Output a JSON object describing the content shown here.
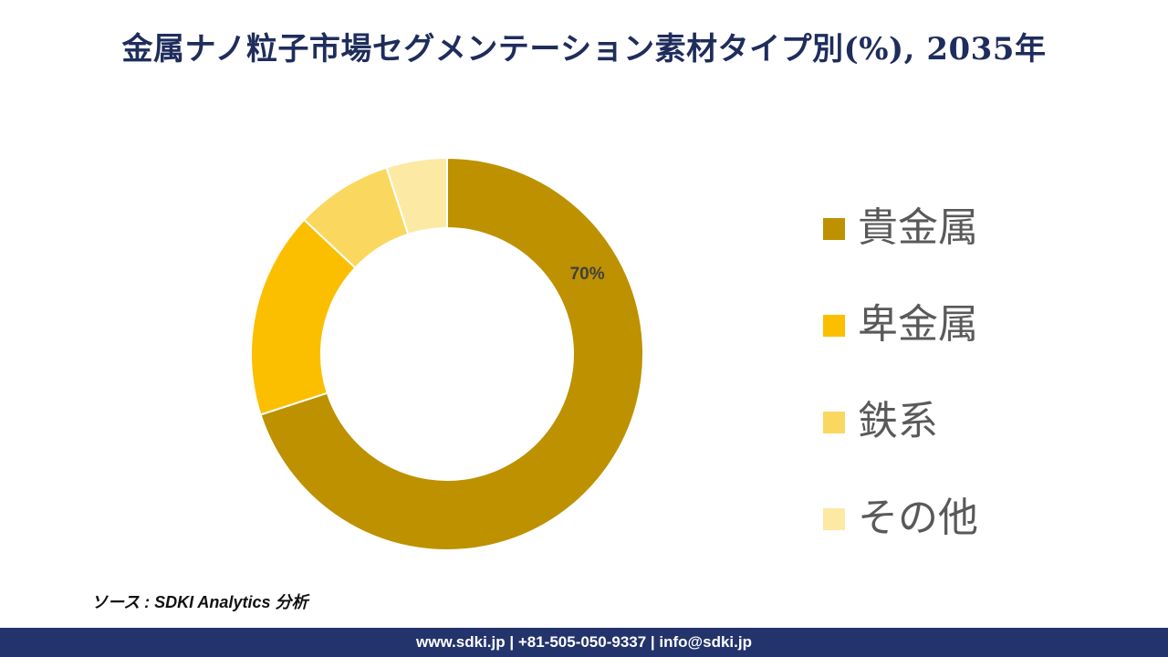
{
  "title": "金属ナノ粒子市場セグメンテーション素材タイプ別(%), 2035年",
  "chart_data": {
    "type": "pie",
    "variant": "donut",
    "title": "金属ナノ粒子市場セグメンテーション素材タイプ別(%), 2035年",
    "categories": [
      "貴金属",
      "卑金属",
      "鉄系",
      "その他"
    ],
    "values": [
      70,
      17,
      8,
      5
    ],
    "colors": [
      "#bd9100",
      "#fbbf00",
      "#fad75f",
      "#fce9a4"
    ],
    "data_labels": [
      "70%",
      "",
      "",
      ""
    ],
    "legend_position": "right",
    "start_angle": "top",
    "direction": "clockwise"
  },
  "legend": {
    "items": [
      {
        "label": "貴金属",
        "color": "#bd9100"
      },
      {
        "label": "卑金属",
        "color": "#fbbf00"
      },
      {
        "label": "鉄系",
        "color": "#fad75f"
      },
      {
        "label": "その他",
        "color": "#fce9a4"
      }
    ]
  },
  "source": "ソース : SDKI Analytics 分析",
  "footer": "www.sdki.jp | +81-505-050-9337 | info@sdki.jp"
}
